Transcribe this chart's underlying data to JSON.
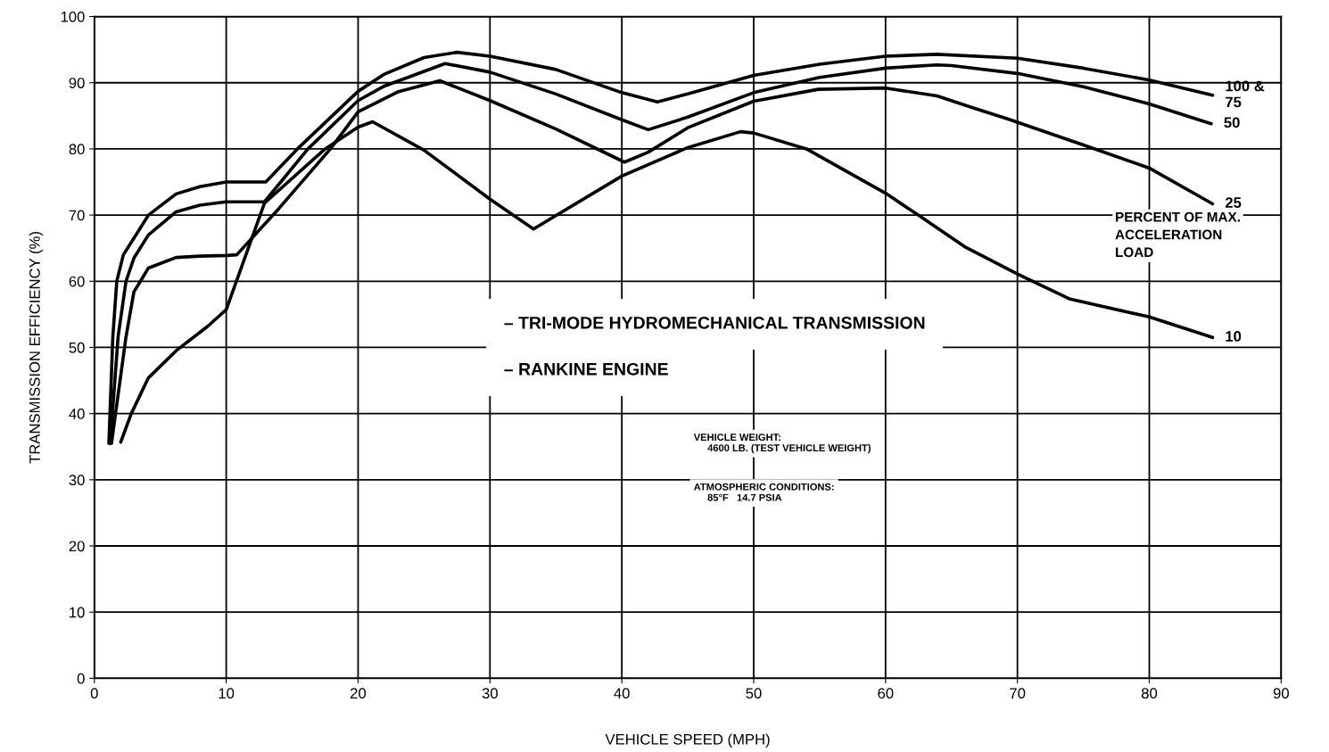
{
  "chart_data": {
    "type": "line",
    "xlabel": "VEHICLE SPEED (MPH)",
    "ylabel": "TRANSMISSION EFFICIENCY (%)",
    "legend_title": "PERCENT OF MAX.\nACCELERATION\nLOAD",
    "xlim": [
      0,
      90
    ],
    "ylim": [
      0,
      100
    ],
    "xticks": [
      0,
      10,
      20,
      30,
      40,
      50,
      60,
      70,
      80,
      90
    ],
    "yticks": [
      0,
      10,
      20,
      30,
      40,
      50,
      60,
      70,
      80,
      90,
      100
    ],
    "grid": true,
    "line_style": "solid",
    "marker": "none",
    "series": [
      {
        "name": "100 &\n75",
        "color": "#000000",
        "x": [
          1.1,
          1.4,
          1.7,
          2.2,
          3,
          4.1,
          6.2,
          8,
          10,
          13,
          15.4,
          20,
          22,
          25,
          27.5,
          30,
          35,
          40,
          42.7,
          45,
          50,
          55,
          60,
          63.9,
          70,
          75,
          80,
          84.8
        ],
        "values": [
          35.5,
          51.6,
          60,
          64,
          66.5,
          70,
          73.2,
          74.3,
          75,
          75,
          80,
          88.7,
          91.3,
          93.8,
          94.6,
          94,
          92,
          88.5,
          87.1,
          88.3,
          91.1,
          92.8,
          94,
          94.3,
          93.7,
          92.2,
          90.4,
          88.1
        ]
      },
      {
        "name": "50",
        "color": "#000000",
        "x": [
          1.2,
          1.8,
          2.4,
          3,
          4.1,
          6.2,
          8,
          10,
          12.9,
          16.2,
          20,
          22,
          26.6,
          30,
          35,
          40,
          42,
          45,
          50,
          55,
          60,
          63.9,
          65,
          70,
          75,
          80,
          84.7
        ],
        "values": [
          35.5,
          51.6,
          60,
          63.5,
          67,
          70.5,
          71.5,
          72,
          72,
          80,
          87.3,
          89.5,
          92.9,
          91.6,
          88.3,
          84.4,
          82.9,
          84.8,
          88.5,
          90.8,
          92.2,
          92.7,
          92.6,
          91.4,
          89.4,
          86.8,
          83.8
        ]
      },
      {
        "name": "25",
        "color": "#000000",
        "x": [
          1.3,
          2.4,
          3,
          3.5,
          4.1,
          6.2,
          8,
          10,
          10.8,
          14,
          17.9,
          20,
          23,
          26.2,
          30,
          35,
          40.2,
          42,
          45,
          50,
          54.9,
          60,
          63.9,
          66.5,
          69.3,
          75,
          80,
          84.8
        ],
        "values": [
          35.5,
          51.6,
          58.4,
          60,
          62,
          63.6,
          63.8,
          63.9,
          64,
          71,
          80,
          85.6,
          88.6,
          90.3,
          87.3,
          83,
          78,
          79.5,
          83.2,
          87.2,
          89,
          89.2,
          88,
          86.3,
          84.5,
          80.6,
          77.1,
          71.7
        ]
      },
      {
        "name": "10",
        "color": "#000000",
        "x": [
          2,
          2.8,
          4.1,
          6.2,
          8.6,
          10,
          12.9,
          17.5,
          20,
          21.1,
          25,
          30,
          33.3,
          40,
          45,
          49,
          50,
          54,
          60,
          62.7,
          66.1,
          70,
          74,
          80,
          84.8
        ],
        "values": [
          35.7,
          40,
          45.4,
          49.5,
          53.2,
          55.7,
          71.8,
          80,
          83.3,
          84.1,
          79.8,
          72.4,
          67.9,
          75.9,
          80.2,
          82.6,
          82.4,
          80,
          73.3,
          69.7,
          65.1,
          61.1,
          57.3,
          54.6,
          51.5
        ]
      }
    ],
    "annotations": [
      "– TRI-MODE HYDROMECHANICAL TRANSMISSION",
      "– RANKINE ENGINE",
      "VEHICLE WEIGHT:\n     4600 LB. (TEST VEHICLE WEIGHT)",
      "ATMOSPHERIC CONDITIONS:\n     85°F   14.7 PSIA"
    ]
  }
}
